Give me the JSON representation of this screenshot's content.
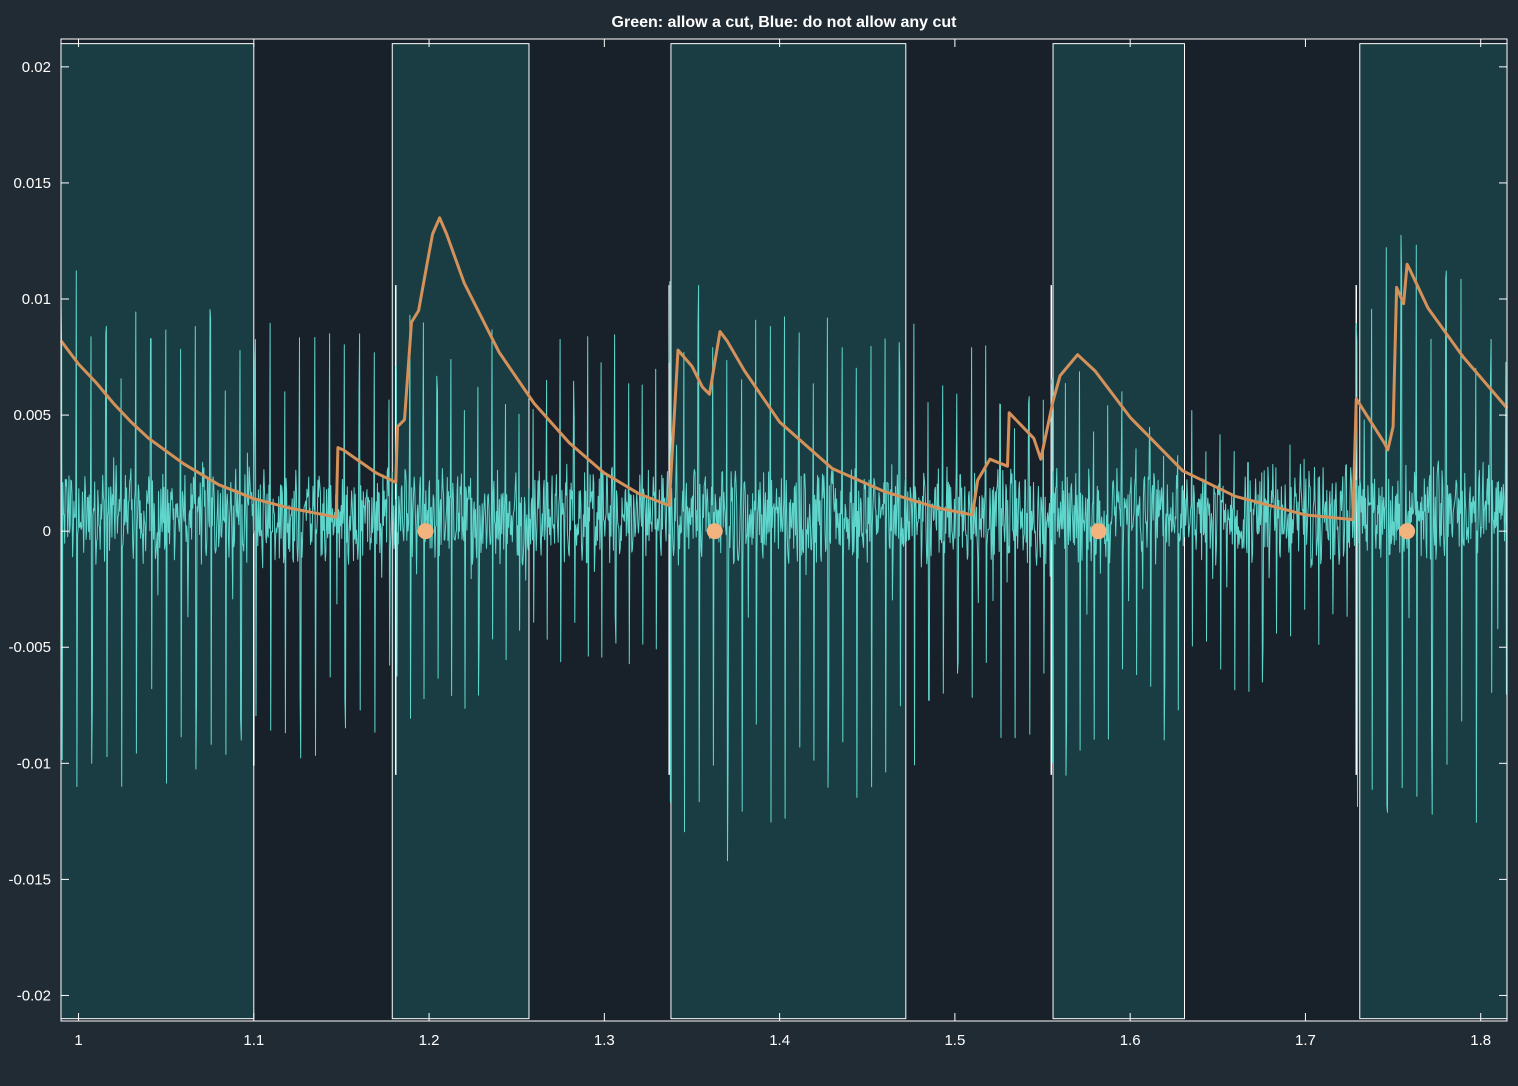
{
  "chart_data": {
    "type": "line",
    "title": "Green: allow a cut, Blue: do not allow any cut",
    "xlabel": "",
    "ylabel": "",
    "xlim": [
      0.99,
      1.815
    ],
    "ylim": [
      -0.0211,
      0.0212
    ],
    "x_ticks": [
      1,
      1.1,
      1.2,
      1.3,
      1.4,
      1.5,
      1.6,
      1.7,
      1.8
    ],
    "x_tick_labels": [
      "1",
      "1.1",
      "1.2",
      "1.3",
      "1.4",
      "1.5",
      "1.6",
      "1.7",
      "1.8"
    ],
    "y_ticks": [
      0.02,
      0.015,
      0.01,
      0.005,
      0,
      -0.005,
      -0.01,
      -0.015,
      -0.02
    ],
    "y_tick_labels": [
      "0.02",
      "0.015",
      "0.01",
      "0.005",
      "0",
      "-0.005",
      "-0.01",
      "-0.015",
      "-0.02"
    ],
    "grid": false,
    "colors": {
      "background": "#212b34",
      "plot_area": "#18202a",
      "allow_region": "#1a3d44",
      "region_edge": "#ffffff",
      "signal": "#5fd6cc",
      "envelope": "#d4915a",
      "markers": "#f2b37e",
      "text": "#ffffff"
    },
    "regions": [
      {
        "kind": "allow a cut",
        "x0": 0.99,
        "x1": 1.1,
        "y0": -0.021,
        "y1": 0.021
      },
      {
        "kind": "allow a cut",
        "x0": 1.179,
        "x1": 1.257,
        "y0": -0.021,
        "y1": 0.021
      },
      {
        "kind": "allow a cut",
        "x0": 1.338,
        "x1": 1.472,
        "y0": -0.021,
        "y1": 0.021
      },
      {
        "kind": "allow a cut",
        "x0": 1.556,
        "x1": 1.631,
        "y0": -0.021,
        "y1": 0.021
      },
      {
        "kind": "allow a cut",
        "x0": 1.731,
        "x1": 1.815,
        "y0": -0.021,
        "y1": 0.021
      }
    ],
    "region_edge_markers": [
      {
        "x": 1.1,
        "y0": -0.0101,
        "y1": 0.0
      },
      {
        "x": 1.181,
        "y0": -0.0105,
        "y1": 0.0106
      },
      {
        "x": 1.337,
        "y0": -0.0105,
        "y1": 0.0106
      },
      {
        "x": 1.555,
        "y0": -0.0105,
        "y1": 0.0106
      },
      {
        "x": 1.729,
        "y0": -0.0105,
        "y1": 0.0106
      }
    ],
    "series": [
      {
        "kind": "signal",
        "segments": [
          {
            "x0": 0.99,
            "x1": 1.181,
            "pos_start": 0.0118,
            "pos_end": 0.0082,
            "neg_start": -0.0118,
            "neg_end": -0.0092,
            "pulse_period": 0.0085
          },
          {
            "x0": 1.181,
            "x1": 1.337,
            "pos_start": 0.0095,
            "pos_end": 0.0085,
            "neg_start": -0.0085,
            "neg_end": -0.0055,
            "pulse_period": 0.0078
          },
          {
            "x0": 1.337,
            "x1": 1.555,
            "pos_start": 0.0115,
            "pos_end": 0.0075,
            "neg_start": -0.0155,
            "neg_end": -0.0085,
            "pulse_period": 0.0082
          },
          {
            "x0": 1.555,
            "x1": 1.729,
            "pos_start": 0.0075,
            "pos_end": 0.0028,
            "neg_start": -0.0125,
            "neg_end": -0.0045,
            "pulse_period": 0.008
          },
          {
            "x0": 1.729,
            "x1": 1.815,
            "pos_start": 0.0145,
            "pos_end": 0.0095,
            "neg_start": -0.0135,
            "neg_end": -0.0125,
            "pulse_period": 0.0085
          }
        ]
      },
      {
        "kind": "envelope",
        "x": [
          0.99,
          1.0,
          1.01,
          1.02,
          1.03,
          1.04,
          1.06,
          1.08,
          1.1,
          1.12,
          1.147,
          1.148,
          1.151,
          1.17,
          1.181,
          1.182,
          1.186,
          1.19,
          1.194,
          1.2,
          1.202,
          1.206,
          1.21,
          1.22,
          1.24,
          1.26,
          1.28,
          1.3,
          1.32,
          1.337,
          1.342,
          1.35,
          1.356,
          1.36,
          1.366,
          1.37,
          1.38,
          1.4,
          1.43,
          1.46,
          1.49,
          1.51,
          1.513,
          1.52,
          1.53,
          1.531,
          1.545,
          1.549,
          1.556,
          1.56,
          1.57,
          1.58,
          1.6,
          1.63,
          1.66,
          1.7,
          1.727,
          1.729,
          1.745,
          1.747,
          1.75,
          1.752,
          1.756,
          1.758,
          1.76,
          1.77,
          1.79,
          1.815
        ],
        "y": [
          0.0082,
          0.0072,
          0.0064,
          0.0055,
          0.0047,
          0.004,
          0.0029,
          0.002,
          0.0014,
          0.001,
          0.0006,
          0.0036,
          0.0035,
          0.0025,
          0.0021,
          0.0045,
          0.0048,
          0.009,
          0.0095,
          0.012,
          0.0128,
          0.0135,
          0.0128,
          0.0107,
          0.0077,
          0.0055,
          0.0038,
          0.0025,
          0.0016,
          0.0011,
          0.0078,
          0.0071,
          0.0062,
          0.0059,
          0.0086,
          0.0082,
          0.0069,
          0.0047,
          0.0027,
          0.0017,
          0.001,
          0.0007,
          0.0022,
          0.0031,
          0.0028,
          0.0051,
          0.004,
          0.0031,
          0.0056,
          0.0067,
          0.0076,
          0.0069,
          0.0049,
          0.0026,
          0.0015,
          0.0007,
          0.0005,
          0.0057,
          0.0038,
          0.0035,
          0.0045,
          0.0105,
          0.0098,
          0.0115,
          0.0112,
          0.0096,
          0.0075,
          0.0053
        ]
      },
      {
        "kind": "markers",
        "x": [
          1.198,
          1.363,
          1.582,
          1.758
        ],
        "y": [
          0,
          0,
          0,
          0
        ]
      }
    ]
  }
}
